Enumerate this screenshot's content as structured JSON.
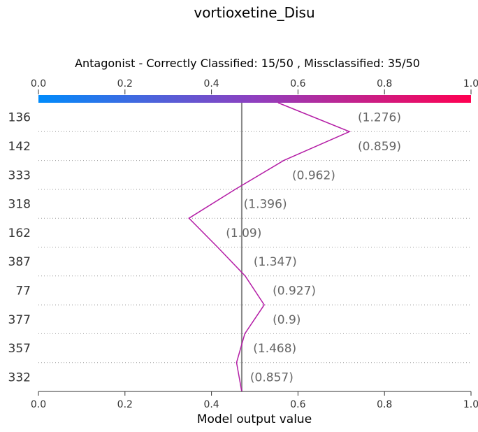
{
  "chart_data": {
    "type": "line",
    "title": "vortioxetine_Disu",
    "subtitle": "Antagonist - Correctly Classified: 15/50 , Missclassified: 35/50",
    "xlabel": "Model output value",
    "xlim": [
      0.0,
      1.0
    ],
    "xticks": [
      "0.0",
      "0.2",
      "0.4",
      "0.6",
      "0.8",
      "1.0"
    ],
    "base_value": 0.47,
    "colorbar": {
      "low_color": "#008bfb",
      "mid_color": "#8f3fbf",
      "high_color": "#ff0051"
    },
    "line_color": "#b41da6",
    "rows": [
      {
        "feature": "136",
        "value_label": "(1.276)"
      },
      {
        "feature": "142",
        "value_label": "(0.859)"
      },
      {
        "feature": "333",
        "value_label": "(0.962)"
      },
      {
        "feature": "318",
        "value_label": "(1.396)"
      },
      {
        "feature": "162",
        "value_label": "(1.09)"
      },
      {
        "feature": "387",
        "value_label": "(1.347)"
      },
      {
        "feature": "77",
        "value_label": "(0.927)"
      },
      {
        "feature": "377",
        "value_label": "(0.9)"
      },
      {
        "feature": "357",
        "value_label": "(1.468)"
      },
      {
        "feature": "332",
        "value_label": "(0.857)"
      }
    ],
    "path_values": [
      0.554,
      0.719,
      0.567,
      0.455,
      0.348,
      0.414,
      0.478,
      0.522,
      0.477,
      0.458,
      0.47
    ]
  }
}
